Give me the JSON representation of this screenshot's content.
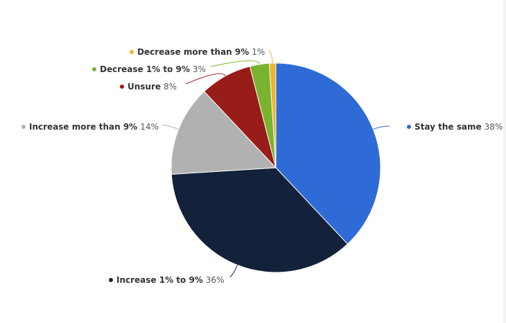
{
  "chart_data": {
    "type": "pie",
    "categories": [
      "Stay the same",
      "Increase 1% to 9%",
      "Increase more than 9%",
      "Unsure",
      "Decrease 1% to 9%",
      "Decrease more than 9%"
    ],
    "values": [
      38,
      36,
      14,
      8,
      3,
      1
    ],
    "value_labels": [
      "38%",
      "36%",
      "14%",
      "8%",
      "3%",
      "1%"
    ],
    "colors": [
      "#2f6bd6",
      "#14213a",
      "#b1b1b1",
      "#981c17",
      "#79b330",
      "#f0b32c"
    ]
  }
}
